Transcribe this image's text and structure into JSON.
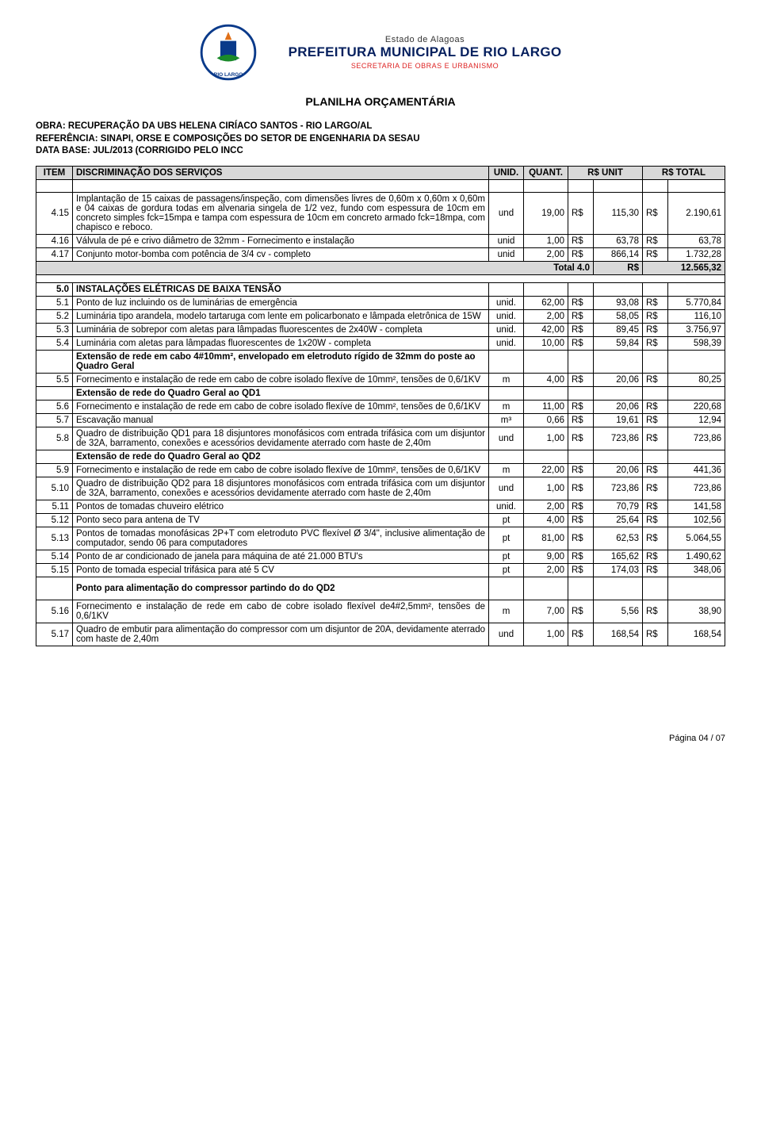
{
  "header": {
    "line1": "Estado de Alagoas",
    "line2": "PREFEITURA MUNICIPAL DE RIO LARGO",
    "line3": "SECRETARIA DE OBRAS E URBANISMO"
  },
  "doc_title": "PLANILHA ORÇAMENTÁRIA",
  "meta": {
    "obra": "OBRA: RECUPERAÇÃO DA UBS HELENA CIRÍACO SANTOS - RIO LARGO/AL",
    "referencia": "REFERÊNCIA: SINAPI, ORSE E COMPOSIÇÕES DO SETOR DE ENGENHARIA DA SESAU",
    "data_base": "DATA BASE: JUL/2013 (CORRIGIDO PELO INCC"
  },
  "cols": {
    "item": "ITEM",
    "desc": "DISCRIMINAÇÃO DOS SERVIÇOS",
    "unid": "UNID.",
    "quant": "QUANT.",
    "unit": "R$ UNIT",
    "total": "R$ TOTAL"
  },
  "curr": "R$",
  "rows4": [
    {
      "item": "4.15",
      "desc": "Implantação de 15 caixas de passagens/inspeção, com dimensões livres de 0,60m x 0,60m x 0,60m e 04 caixas de gordura todas em alvenaria singela de 1/2 vez, fundo com espessura de 10cm em concreto simples fck=15mpa e tampa com espessura de 10cm em concreto armado fck=18mpa, com chapisco e reboco.",
      "unid": "und",
      "quant": "19,00",
      "unit": "115,30",
      "total": "2.190,61"
    },
    {
      "item": "4.16",
      "desc": "  Válvula de pé e crivo diâmetro de 32mm - Fornecimento e instalação",
      "unid": "unid",
      "quant": "1,00",
      "unit": "63,78",
      "total": "63,78"
    },
    {
      "item": "4.17",
      "desc": "Conjunto motor-bomba com potência de 3/4 cv - completo",
      "unid": "unid",
      "quant": "2,00",
      "unit": "866,14",
      "total": "1.732,28"
    }
  ],
  "total4": {
    "label": "Total 4.0",
    "curr": "R$",
    "value": "12.565,32"
  },
  "section5": {
    "item": "5.0",
    "title": "INSTALAÇÕES ELÉTRICAS DE BAIXA TENSÃO"
  },
  "rows5": [
    {
      "item": "5.1",
      "desc": "Ponto de luz incluindo os de luminárias de emergência",
      "unid": "unid.",
      "quant": "62,00",
      "unit": "93,08",
      "total": "5.770,84"
    },
    {
      "item": "5.2",
      "desc": "Luminária tipo arandela, modelo tartaruga com lente em policarbonato e lâmpada eletrônica de 15W",
      "unid": "unid.",
      "quant": "2,00",
      "unit": "58,05",
      "total": "116,10"
    },
    {
      "item": "5.3",
      "desc": "Luminária de sobrepor com aletas para lâmpadas fluorescentes de 2x40W - completa",
      "unid": "unid.",
      "quant": "42,00",
      "unit": "89,45",
      "total": "3.756,97"
    },
    {
      "item": "5.4",
      "desc": "Luminária com aletas para lâmpadas fluorescentes de 1x20W - completa",
      "unid": "unid.",
      "quant": "10,00",
      "unit": "59,84",
      "total": "598,39"
    },
    {
      "item": "",
      "desc": "Extensão de rede em cabo 4#10mm², envelopado em eletroduto rígido de 32mm do poste ao Quadro Geral",
      "bold": true
    },
    {
      "item": "5.5",
      "desc": "Fornecimento e instalação de rede em cabo de cobre isolado flexíve de 10mm², tensões de 0,6/1KV",
      "unid": "m",
      "quant": "4,00",
      "unit": "20,06",
      "total": "80,25"
    },
    {
      "item": "",
      "desc": "Extensão de rede do Quadro Geral ao QD1",
      "bold": true
    },
    {
      "item": "5.6",
      "desc": "Fornecimento e instalação de rede em cabo de cobre isolado flexíve de 10mm², tensões de 0,6/1KV",
      "unid": "m",
      "quant": "11,00",
      "unit": "20,06",
      "total": "220,68"
    },
    {
      "item": "5.7",
      "desc": "Escavação manual",
      "unid": "m³",
      "quant": "0,66",
      "unit": "19,61",
      "total": "12,94"
    },
    {
      "item": "5.8",
      "desc": "Quadro de distribuição QD1 para 18 disjuntores monofásicos com entrada trifásica com um disjuntor de 32A, barramento, conexões e acessórios devidamente aterrado com haste de 2,40m",
      "unid": "und",
      "quant": "1,00",
      "unit": "723,86",
      "total": "723,86"
    },
    {
      "item": "",
      "desc": "Extensão de rede do Quadro Geral ao QD2",
      "bold": true
    },
    {
      "item": "5.9",
      "desc": "Fornecimento e instalação de rede em cabo de cobre isolado flexíve de 10mm², tensões de 0,6/1KV",
      "unid": "m",
      "quant": "22,00",
      "unit": "20,06",
      "total": "441,36"
    },
    {
      "item": "5.10",
      "desc": "Quadro de distribuição QD2 para 18 disjuntores monofásicos com entrada trifásica com um disjuntor de 32A, barramento, conexões e acessórios devidamente aterrado com haste de 2,40m",
      "unid": "und",
      "quant": "1,00",
      "unit": "723,86",
      "total": "723,86"
    },
    {
      "item": "5.11",
      "desc": "Pontos de tomadas chuveiro elétrico",
      "unid": "unid.",
      "quant": "2,00",
      "unit": "70,79",
      "total": "141,58"
    },
    {
      "item": "5.12",
      "desc": "Ponto seco para antena de TV",
      "unid": "pt",
      "quant": "4,00",
      "unit": "25,64",
      "total": "102,56"
    },
    {
      "item": "5.13",
      "desc": "Pontos de tomadas monofásicas 2P+T com eletroduto PVC flexível Ø 3/4\", inclusive alimentação de computador, sendo 06 para computadores",
      "unid": "pt",
      "quant": "81,00",
      "unit": "62,53",
      "total": "5.064,55"
    },
    {
      "item": "5.14",
      "desc": "Ponto de ar condicionado de janela para máquina de até 21.000 BTU's",
      "unid": "pt",
      "quant": "9,00",
      "unit": "165,62",
      "total": "1.490,62"
    },
    {
      "item": "5.15",
      "desc": "Ponto de tomada especial trifásica para até 5 CV",
      "unid": "pt",
      "quant": "2,00",
      "unit": "174,03",
      "total": "348,06"
    },
    {
      "item": "",
      "desc": "Ponto para alimentação do compressor partindo do do QD2",
      "bold": true,
      "tall": true
    },
    {
      "item": "5.16",
      "desc": "Fornecimento e instalação de rede em cabo de cobre isolado flexível de4#2,5mm², tensões de 0,6/1KV",
      "unid": "m",
      "quant": "7,00",
      "unit": "5,56",
      "total": "38,90"
    },
    {
      "item": "5.17",
      "desc": "Quadro de embutir para alimentação do compressor com um disjuntor de 20A, devidamente aterrado com haste de 2,40m",
      "unid": "und",
      "quant": "1,00",
      "unit": "168,54",
      "total": "168,54"
    }
  ],
  "footer": "Página 04 / 07"
}
